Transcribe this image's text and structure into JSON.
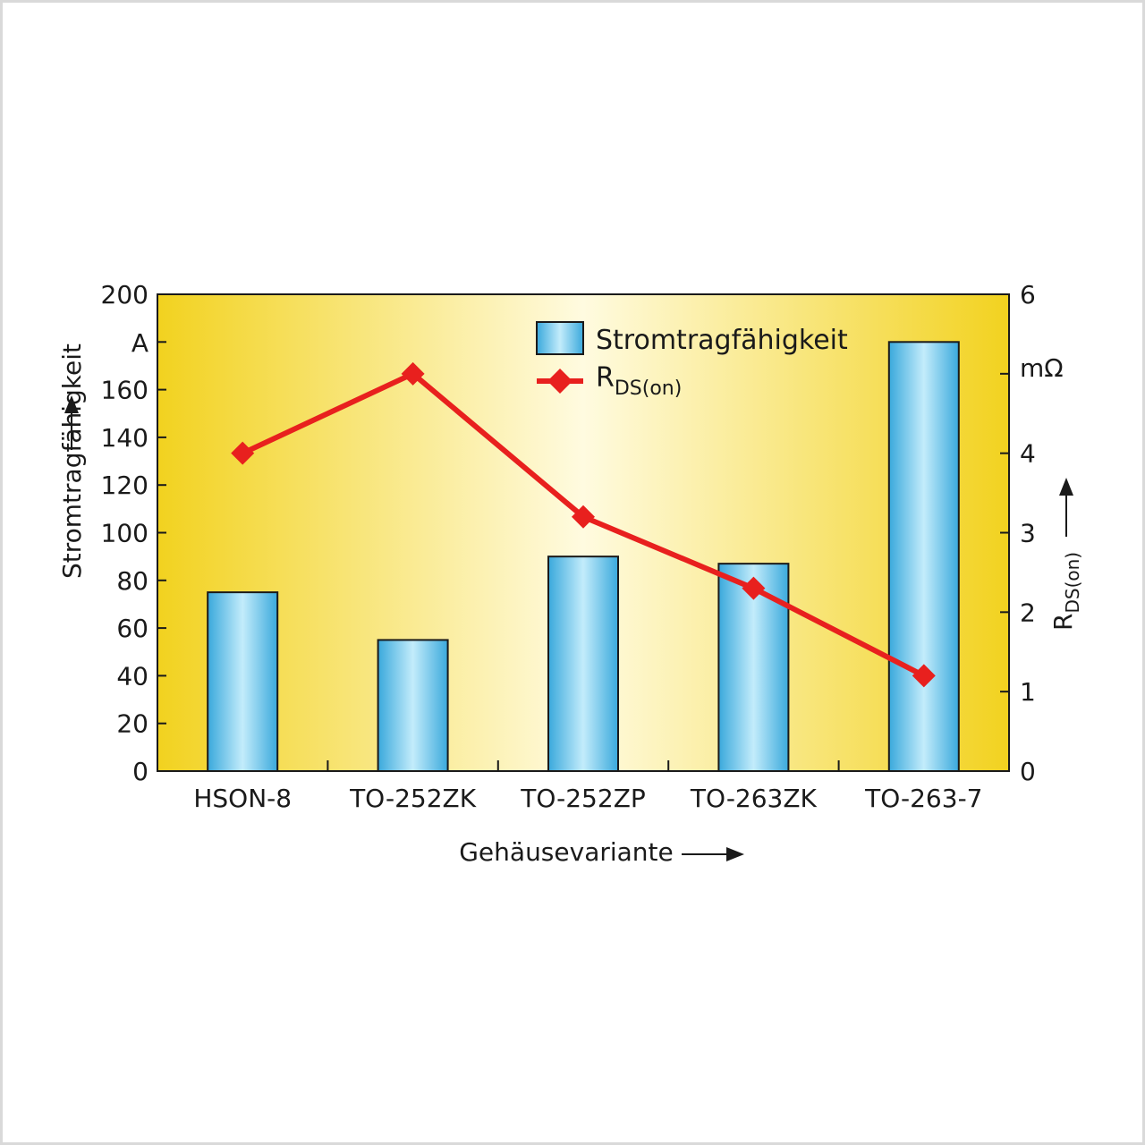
{
  "chart_data": {
    "type": "bar",
    "categories": [
      "HSON-8",
      "TO-252ZK",
      "TO-252ZP",
      "TO-263ZK",
      "TO-263-7"
    ],
    "series": [
      {
        "name": "Stromtragfähigkeit",
        "type": "bar",
        "axis": "left",
        "values": [
          75,
          55,
          90,
          87,
          180
        ]
      },
      {
        "name": "R",
        "name_sub": "DS(on)",
        "type": "line",
        "axis": "right",
        "values": [
          4.0,
          5.0,
          3.2,
          2.3,
          1.2
        ]
      }
    ],
    "xlabel": "Gehäusevariante",
    "ylabel_left": "Stromtragfähigkeit",
    "ylabel_left_unit": "A",
    "ylabel_right": "R",
    "ylabel_right_sub": "DS(on)",
    "ylabel_right_unit": "mΩ",
    "ylim_left": [
      0,
      200
    ],
    "ylim_right": [
      0,
      6
    ],
    "yticks_left": [
      "200",
      "",
      "160",
      "140",
      "120",
      "100",
      "80",
      "60",
      "40",
      "20",
      "0"
    ],
    "yticks_right": [
      "6",
      "",
      "4",
      "3",
      "2",
      "1",
      "0"
    ],
    "legend_position": "top-center",
    "grid": false,
    "colors": {
      "bar_fill": "#8fd8f5",
      "bar_stroke": "#1a1a1a",
      "line": "#e8201e",
      "background_edge": "#f2d21f",
      "background_center": "#fffbe0"
    }
  }
}
